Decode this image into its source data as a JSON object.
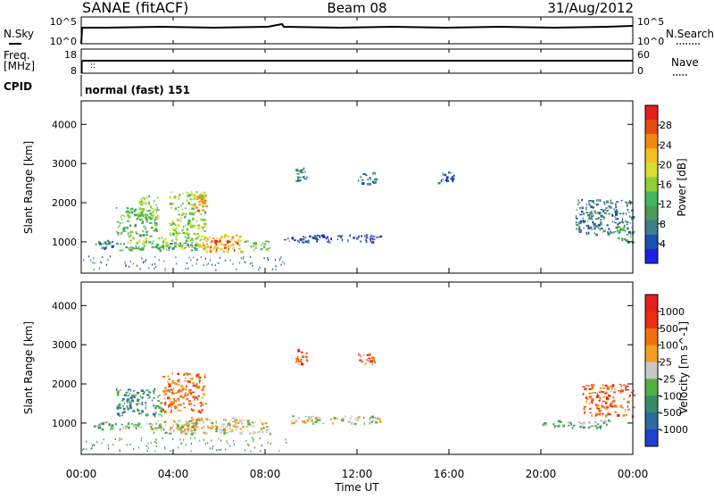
{
  "header": {
    "station": "SANAE (fitACF)",
    "beam": "Beam 08",
    "date": "31/Aug/2012"
  },
  "top_panels": {
    "nsky": {
      "label": "N.Sky",
      "tick_top": "10^5",
      "tick_bottom": "10^0"
    },
    "nsearch": {
      "label": "N.Search",
      "tick_top": "10^5",
      "tick_bottom": "10^0"
    },
    "freq": {
      "label_line1": "Freq.",
      "label_line2": "[MHz]",
      "tick_top": "18",
      "tick_bottom": "8"
    },
    "nave": {
      "label": "Nave",
      "tick_top": "60",
      "tick_bottom": "0"
    },
    "cpid": {
      "label": "CPID",
      "value": "normal (fast) 151"
    }
  },
  "time_axis": {
    "label": "Time UT",
    "ticks": [
      "00:00",
      "04:00",
      "08:00",
      "12:00",
      "16:00",
      "20:00",
      "00:00"
    ]
  },
  "chart_data": [
    {
      "type": "heatmap",
      "name": "power",
      "ylabel": "Slant Range [km]",
      "y_ticks": [
        1000,
        2000,
        3000,
        4000
      ],
      "ylim": [
        200,
        4600
      ],
      "xlim_hours": [
        0,
        24
      ],
      "colorbar": {
        "label": "Power [dB]",
        "ticks": [
          "28",
          "24",
          "20",
          "16",
          "12",
          "8",
          "4"
        ],
        "colors": [
          "#2020e6",
          "#1c4fb0",
          "#3e7f8a",
          "#4a9a5a",
          "#3fb860",
          "#8dce3a",
          "#d6e030",
          "#f4c020",
          "#f08a10",
          "#e64a10",
          "#e61e1e"
        ]
      },
      "clusters": [
        {
          "t0": 0.5,
          "t1": 1.5,
          "r0": 850,
          "r1": 1050,
          "level": 2
        },
        {
          "t0": 1.5,
          "t1": 5.0,
          "r0": 800,
          "r1": 1000,
          "level": 3
        },
        {
          "t0": 2.0,
          "t1": 5.5,
          "r0": 850,
          "r1": 1150,
          "level": 5
        },
        {
          "t0": 5.0,
          "t1": 7.0,
          "r0": 750,
          "r1": 1200,
          "level": 7
        },
        {
          "t0": 5.6,
          "t1": 6.8,
          "r0": 800,
          "r1": 1050,
          "level": 9
        },
        {
          "t0": 7.0,
          "t1": 8.2,
          "r0": 800,
          "r1": 1050,
          "level": 4
        },
        {
          "t0": 1.5,
          "t1": 3.3,
          "r0": 1150,
          "r1": 1900,
          "level": 4
        },
        {
          "t0": 2.5,
          "t1": 3.3,
          "r0": 1500,
          "r1": 2200,
          "level": 5
        },
        {
          "t0": 3.8,
          "t1": 5.4,
          "r0": 1200,
          "r1": 2300,
          "level": 5
        },
        {
          "t0": 4.8,
          "t1": 5.4,
          "r0": 1800,
          "r1": 2300,
          "level": 8
        },
        {
          "t0": 8.8,
          "t1": 13.0,
          "r0": 1000,
          "r1": 1200,
          "level": 1
        },
        {
          "t0": 9.3,
          "t1": 9.8,
          "r0": 2500,
          "r1": 2900,
          "level": 2
        },
        {
          "t0": 12.0,
          "t1": 12.8,
          "r0": 2500,
          "r1": 2800,
          "level": 2
        },
        {
          "t0": 15.5,
          "t1": 16.2,
          "r0": 2500,
          "r1": 2800,
          "level": 1
        },
        {
          "t0": 21.5,
          "t1": 24.0,
          "r0": 1200,
          "r1": 2100,
          "level": 2
        },
        {
          "t0": 23.3,
          "t1": 24.0,
          "r0": 1000,
          "r1": 1400,
          "level": 4
        }
      ]
    },
    {
      "type": "heatmap",
      "name": "velocity",
      "ylabel": "Slant Range [km]",
      "y_ticks": [
        1000,
        2000,
        3000,
        4000
      ],
      "ylim": [
        200,
        4600
      ],
      "xlim_hours": [
        0,
        24
      ],
      "colorbar": {
        "label": "Velocity [m s^-1]",
        "ticks": [
          "1000",
          "500",
          "100",
          "25",
          "-25",
          "-100",
          "-500",
          "-1000"
        ],
        "colors": [
          "#2040d0",
          "#2a6aa0",
          "#3a8a6a",
          "#52b040",
          "#c8c8c8",
          "#f0a020",
          "#f07010",
          "#e83010",
          "#e61e1e"
        ]
      },
      "clusters": [
        {
          "t0": 0.5,
          "t1": 3.0,
          "r0": 850,
          "r1": 1050,
          "level": 3
        },
        {
          "t0": 3.0,
          "t1": 8.2,
          "r0": 750,
          "r1": 1100,
          "level": 4
        },
        {
          "t0": 4.5,
          "t1": 6.8,
          "r0": 850,
          "r1": 1150,
          "level": 5
        },
        {
          "t0": 1.5,
          "t1": 3.5,
          "r0": 1200,
          "r1": 1900,
          "level": 2
        },
        {
          "t0": 3.5,
          "t1": 5.4,
          "r0": 1300,
          "r1": 2300,
          "level": 6
        },
        {
          "t0": 9.0,
          "t1": 13.0,
          "r0": 1000,
          "r1": 1200,
          "level": 4
        },
        {
          "t0": 9.3,
          "t1": 9.8,
          "r0": 2500,
          "r1": 2900,
          "level": 7
        },
        {
          "t0": 12.0,
          "t1": 12.8,
          "r0": 2500,
          "r1": 2800,
          "level": 6
        },
        {
          "t0": 21.8,
          "t1": 24.0,
          "r0": 1200,
          "r1": 2000,
          "level": 6
        },
        {
          "t0": 20.0,
          "t1": 23.0,
          "r0": 900,
          "r1": 1100,
          "level": 3
        }
      ]
    }
  ]
}
